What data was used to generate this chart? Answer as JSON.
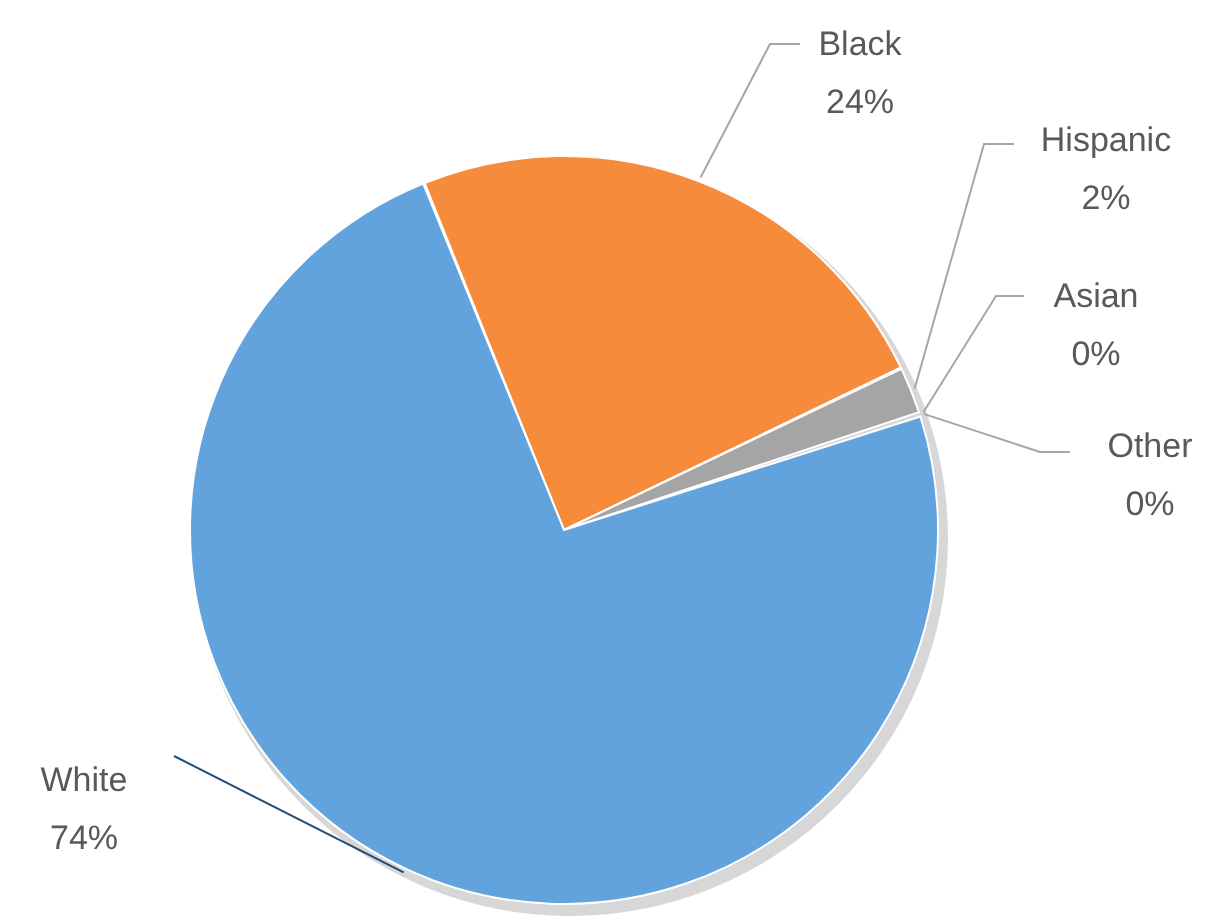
{
  "chart_data": {
    "type": "pie",
    "categories": [
      "Black",
      "Hispanic",
      "Asian",
      "Other",
      "White"
    ],
    "values": [
      24,
      2,
      0,
      0,
      74
    ],
    "colors": [
      "#f78b3c",
      "#a5a5a5",
      "#ffc000",
      "#4472c4",
      "#62a3de"
    ],
    "value_labels": [
      "24%",
      "2%",
      "0%",
      "0%",
      "74%"
    ]
  }
}
